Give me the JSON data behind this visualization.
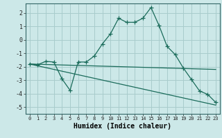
{
  "title": "",
  "xlabel": "Humidex (Indice chaleur)",
  "background_color": "#cce8e8",
  "grid_color": "#a8cccc",
  "line_color": "#1a6b5a",
  "xlim": [
    -0.5,
    23.5
  ],
  "ylim": [
    -5.5,
    2.7
  ],
  "xticks": [
    0,
    1,
    2,
    3,
    4,
    5,
    6,
    7,
    8,
    9,
    10,
    11,
    12,
    13,
    14,
    15,
    16,
    17,
    18,
    19,
    20,
    21,
    22,
    23
  ],
  "yticks": [
    -5,
    -4,
    -3,
    -2,
    -1,
    0,
    1,
    2
  ],
  "line1_x": [
    0,
    1,
    2,
    3,
    4,
    5,
    6,
    7,
    8,
    9,
    10,
    11,
    12,
    13,
    14,
    15,
    16,
    17,
    18,
    19,
    20,
    21,
    22,
    23
  ],
  "line1_y": [
    -1.8,
    -1.85,
    -1.6,
    -1.65,
    -2.9,
    -3.75,
    -1.65,
    -1.65,
    -1.2,
    -0.3,
    0.45,
    1.6,
    1.3,
    1.3,
    1.6,
    2.4,
    1.05,
    -0.5,
    -1.1,
    -2.1,
    -2.95,
    -3.8,
    -4.05,
    -4.65
  ],
  "line2_x": [
    0,
    23
  ],
  "line2_y": [
    -1.8,
    -2.2
  ],
  "line3_x": [
    0,
    23
  ],
  "line3_y": [
    -1.8,
    -4.85
  ]
}
